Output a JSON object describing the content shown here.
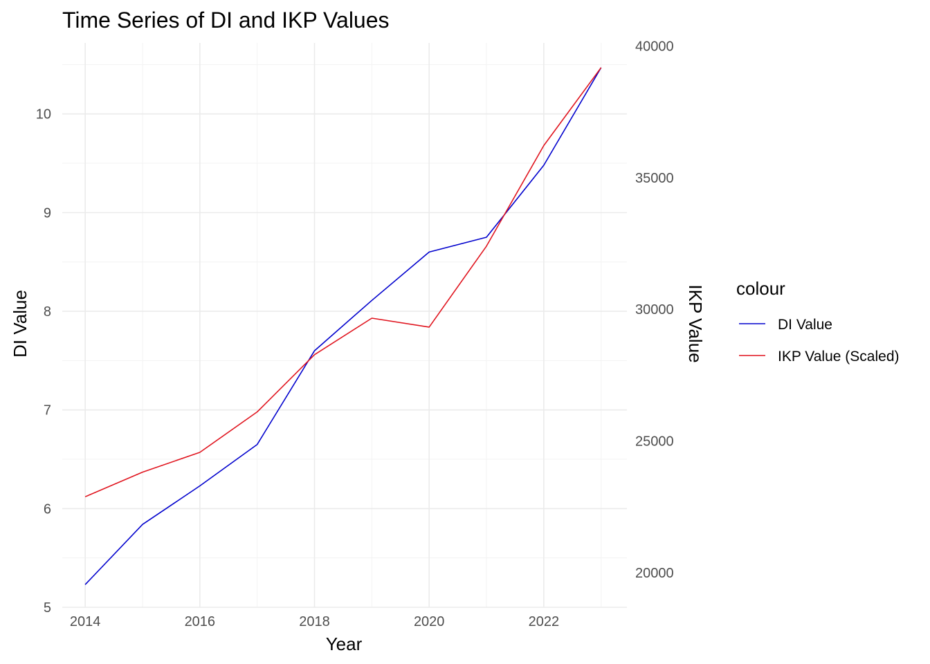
{
  "chart_data": {
    "type": "line",
    "title": "Time Series of DI and IKP Values",
    "xlabel": "Year",
    "ylabel": "DI Value",
    "y2label": "IKP Value",
    "x": [
      2014,
      2015,
      2016,
      2017,
      2018,
      2019,
      2020,
      2021,
      2022,
      2023
    ],
    "xlim": [
      2013.6,
      2023.45
    ],
    "ylim": [
      5.0,
      10.72
    ],
    "y2lim": [
      18680,
      40120
    ],
    "x_ticks": [
      2014,
      2016,
      2018,
      2020,
      2022
    ],
    "y_ticks": [
      5,
      6,
      7,
      8,
      9,
      10
    ],
    "y2_ticks": [
      20000,
      25000,
      30000,
      35000,
      40000
    ],
    "grid": true,
    "series": [
      {
        "name": "DI Value",
        "color": "#0000cd",
        "values": [
          5.23,
          5.84,
          6.23,
          6.65,
          7.6,
          8.11,
          8.6,
          8.75,
          9.48,
          10.47
        ]
      },
      {
        "name": "IKP Value (Scaled)",
        "color": "#e0141e",
        "values": [
          6.12,
          6.37,
          6.57,
          6.98,
          7.56,
          7.93,
          7.84,
          8.66,
          9.68,
          10.47
        ]
      }
    ],
    "legend": {
      "title": "colour",
      "position": "right"
    }
  }
}
